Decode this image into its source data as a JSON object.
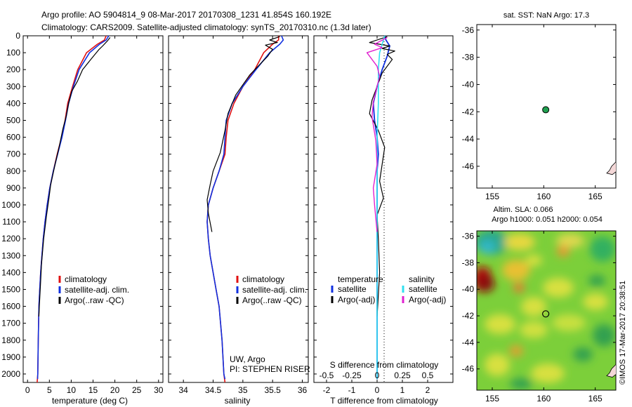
{
  "title": {
    "line1": "Argo profile: AO 5904814_9 08-Mar-2017 20170308_1231 41.854S 160.192E",
    "line2": "Climatology: CARS2009. Satellite-adjusted climatology: synTS_20170310.nc (1.3d later)"
  },
  "colors": {
    "climatology": "#e01010",
    "satellite": "#1030e0",
    "argo": "#000000",
    "sat_salinity": "#30e0f0",
    "argo_salinity": "#e020d0",
    "location_marker": "#20a050"
  },
  "chart_data": [
    {
      "id": "temperature",
      "type": "line",
      "xlabel": "temperature (deg C)",
      "ylabel": "",
      "xlim": [
        -1,
        31
      ],
      "ylim": [
        2050,
        0
      ],
      "xticks": [
        0,
        5,
        10,
        15,
        20,
        25,
        30
      ],
      "xtick_labels": [
        "0",
        "5",
        "10",
        "15",
        "20",
        "25",
        "30"
      ],
      "yticks": [
        0,
        100,
        200,
        300,
        400,
        500,
        600,
        700,
        800,
        900,
        1000,
        1100,
        1200,
        1300,
        1400,
        1500,
        1600,
        1700,
        1800,
        1900,
        2000
      ],
      "ytick_labels": [
        "0",
        "100",
        "200",
        "300",
        "400",
        "500",
        "600",
        "700",
        "800",
        "900",
        "1000",
        "1100",
        "1200",
        "1300",
        "1400",
        "1500",
        "1600",
        "1700",
        "1800",
        "1900",
        "2000"
      ],
      "legend": [
        "climatology",
        "satellite-adj. clim.",
        "Argo(..raw -QC)"
      ],
      "legend_position": "lower-right",
      "series": [
        {
          "name": "climatology",
          "color": "#e01010",
          "width": 1.6,
          "x": [
            18.0,
            17.6,
            16.0,
            13.5,
            11.5,
            10.3,
            9.2,
            8.6,
            7.8,
            6.8,
            5.9,
            5.1,
            4.5,
            4.0,
            3.6,
            3.3,
            3.0,
            2.8,
            2.6,
            2.45,
            2.35,
            2.2
          ],
          "y": [
            0,
            25,
            50,
            100,
            200,
            300,
            400,
            500,
            600,
            700,
            800,
            900,
            1000,
            1100,
            1200,
            1300,
            1400,
            1500,
            1600,
            1800,
            2000,
            2050
          ]
        },
        {
          "name": "satellite-adj. clim.",
          "color": "#1030e0",
          "width": 1.6,
          "x": [
            18.6,
            18.0,
            16.5,
            14.2,
            11.8,
            10.5,
            9.4,
            8.7,
            7.9,
            6.9,
            5.9,
            5.1,
            4.5,
            4.0,
            3.6,
            3.3,
            3.0,
            2.8,
            2.6,
            2.45,
            2.35,
            2.3
          ],
          "y": [
            0,
            25,
            50,
            100,
            200,
            300,
            400,
            500,
            600,
            700,
            800,
            900,
            1000,
            1100,
            1200,
            1300,
            1400,
            1500,
            1600,
            1800,
            2000,
            2030
          ]
        },
        {
          "name": "Argo(..raw -QC)",
          "color": "#000000",
          "width": 1.2,
          "x": [
            18.9,
            18.3,
            17.2,
            16.4,
            14.8,
            12.6,
            11.4,
            10.1,
            9.4,
            8.9,
            8.1,
            7.3,
            6.4,
            5.3,
            4.9,
            4.3,
            3.7,
            3.2,
            3.0,
            2.7,
            2.6
          ],
          "y": [
            10,
            30,
            60,
            80,
            130,
            200,
            270,
            330,
            400,
            470,
            550,
            650,
            750,
            880,
            960,
            1070,
            1200,
            1350,
            1450,
            1600,
            1660
          ]
        }
      ]
    },
    {
      "id": "salinity",
      "type": "line",
      "xlabel": "salinity",
      "xlim": [
        33.75,
        36.1
      ],
      "ylim": [
        2050,
        0
      ],
      "xticks": [
        34,
        34.5,
        35,
        35.5,
        36
      ],
      "xtick_labels": [
        "34",
        "34.5",
        "35",
        "35.5",
        "36"
      ],
      "legend": [
        "climatology",
        "satellite-adj. clim.",
        "Argo(..raw -QC)"
      ],
      "legend_position": "lower-right",
      "annotation": [
        "UW, Argo",
        "PI: STEPHEN RISER"
      ],
      "series": [
        {
          "name": "climatology",
          "color": "#e01010",
          "width": 1.6,
          "x": [
            35.6,
            35.6,
            35.5,
            35.35,
            35.2,
            35.0,
            34.85,
            34.75,
            34.72,
            34.7,
            34.6,
            34.5,
            34.42,
            34.4,
            34.42,
            34.45,
            34.5,
            34.55,
            34.6,
            34.65,
            34.68,
            34.7
          ],
          "y": [
            0,
            25,
            50,
            100,
            200,
            300,
            400,
            500,
            600,
            700,
            800,
            900,
            1000,
            1100,
            1200,
            1300,
            1400,
            1500,
            1600,
            1800,
            2000,
            2050
          ]
        },
        {
          "name": "satellite-adj. clim.",
          "color": "#1030e0",
          "width": 1.6,
          "x": [
            35.65,
            35.68,
            35.62,
            35.45,
            35.22,
            35.0,
            34.82,
            34.72,
            34.7,
            34.68,
            34.6,
            34.5,
            34.42,
            34.4,
            34.42,
            34.45,
            34.5,
            34.55,
            34.6,
            34.65,
            34.68,
            34.7
          ],
          "y": [
            0,
            25,
            50,
            100,
            200,
            300,
            400,
            500,
            600,
            700,
            800,
            900,
            1000,
            1100,
            1200,
            1300,
            1400,
            1500,
            1600,
            1800,
            2000,
            2030
          ]
        },
        {
          "name": "Argo(..raw -QC)",
          "color": "#000000",
          "width": 1.2,
          "x": [
            35.62,
            35.45,
            35.58,
            35.38,
            35.5,
            35.42,
            35.12,
            34.88,
            34.75,
            34.7,
            34.62,
            34.5,
            34.45,
            34.4,
            34.42,
            34.48
          ],
          "y": [
            5,
            25,
            40,
            55,
            80,
            120,
            230,
            350,
            460,
            560,
            690,
            800,
            880,
            970,
            1050,
            1160
          ]
        }
      ]
    },
    {
      "id": "differences",
      "type": "line",
      "xlabel": "T difference from climatology",
      "xlabel_top": "S difference from climatology",
      "xlim": [
        -2.5,
        3.0
      ],
      "ylim": [
        2050,
        0
      ],
      "xticks": [
        -2,
        -1,
        0,
        1,
        2
      ],
      "xtick_labels": [
        "-2",
        "-1",
        "0",
        "1",
        "2"
      ],
      "s_ticks": [
        -0.5,
        -0.25,
        0,
        0.25,
        0.5
      ],
      "s_tick_labels": [
        "-0.5",
        "-0.25",
        "0",
        "0.25",
        "0.5"
      ],
      "legend": [
        "temperature",
        "satellite",
        "Argo(-adj)",
        "salinity",
        "satellite",
        "Argo(-adj)"
      ],
      "legend_position": "lower-center",
      "series": [
        {
          "name": "temperature satellite",
          "color": "#1030e0",
          "width": 1.8,
          "x": [
            0.3,
            0.35,
            0.5,
            0.4,
            0.2,
            0.0,
            -0.15,
            -0.1,
            0.0,
            0.05,
            0.0,
            0.0,
            0.0,
            0.0,
            0.0,
            0.0
          ],
          "y": [
            0,
            25,
            60,
            120,
            200,
            300,
            400,
            500,
            600,
            700,
            800,
            1000,
            1200,
            1400,
            1600,
            2030
          ]
        },
        {
          "name": "temperature Argo(-adj)",
          "color": "#000000",
          "width": 1.2,
          "x": [
            0.4,
            -0.3,
            0.5,
            0.2,
            0.7,
            0.4,
            0.6,
            0.2,
            0.0,
            -0.2,
            -0.3,
            0.05,
            0.3,
            0.2,
            0.1,
            0.25,
            0.0,
            0.05,
            0.1,
            0.0
          ],
          "y": [
            5,
            40,
            60,
            75,
            90,
            110,
            140,
            220,
            300,
            380,
            460,
            560,
            660,
            760,
            860,
            960,
            1060,
            1200,
            1400,
            1660
          ]
        },
        {
          "name": "salinity satellite",
          "color": "#30e0f0",
          "width": 1.6,
          "x": [
            0.3,
            0.1,
            0.05,
            0.05,
            0.0,
            0.0,
            0.0,
            0.0,
            0.0,
            0.0,
            0.0
          ],
          "y": [
            0,
            100,
            200,
            400,
            600,
            800,
            1000,
            1200,
            1400,
            1800,
            2030
          ]
        },
        {
          "name": "salinity Argo(-adj)",
          "color": "#e020d0",
          "width": 1.4,
          "x": [
            0.4,
            -0.1,
            0.2,
            -0.4,
            0.0,
            0.1,
            -0.15,
            -0.2,
            -0.05,
            0.0,
            -0.15,
            -0.1,
            -0.05,
            0.0
          ],
          "y": [
            10,
            50,
            70,
            100,
            180,
            240,
            390,
            480,
            620,
            760,
            900,
            1000,
            1080,
            1160
          ]
        }
      ]
    },
    {
      "id": "sst_map",
      "type": "scatter",
      "title": "sat. SST: NaN Argo: 17.3",
      "xlim": [
        153.5,
        167
      ],
      "ylim": [
        -47.6,
        -35.6
      ],
      "xticks": [
        155,
        160,
        165
      ],
      "xtick_labels": [
        "155",
        "160",
        "165"
      ],
      "yticks": [
        -36,
        -38,
        -40,
        -42,
        -44,
        -46
      ],
      "ytick_labels": [
        "-36",
        "-38",
        "-40",
        "-42",
        "-44",
        "-46"
      ],
      "point": {
        "lon": 160.192,
        "lat": -41.854
      }
    },
    {
      "id": "sla_map",
      "type": "heatmap",
      "title_line1": "Altim. SLA: 0.066",
      "title_line2": "Argo h1000: 0.051 h2000: 0.054",
      "xlim": [
        153.5,
        167
      ],
      "ylim": [
        -47.6,
        -35.6
      ],
      "xticks": [
        155,
        160,
        165
      ],
      "xtick_labels": [
        "155",
        "160",
        "165"
      ],
      "yticks": [
        -36,
        -38,
        -40,
        -42,
        -44,
        -46
      ],
      "ytick_labels": [
        "-36",
        "-38",
        "-40",
        "-42",
        "-44",
        "-46"
      ],
      "point": {
        "lon": 160.192,
        "lat": -41.854
      }
    }
  ],
  "watermark": "©IMOS 17-Mar-2017 20:38:51"
}
